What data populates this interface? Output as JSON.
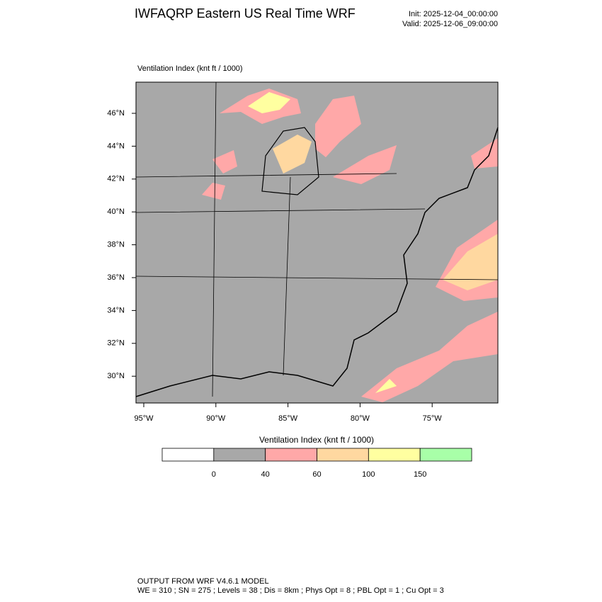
{
  "header": {
    "title": "IWFAQRP Eastern US Real Time WRF",
    "init": "Init: 2025-12-04_00:00:00",
    "valid": "Valid: 2025-12-06_09:00:00"
  },
  "map": {
    "title": "Ventilation Index   (knt ft / 1000)",
    "lat_labels": [
      "46°N",
      "44°N",
      "42°N",
      "40°N",
      "38°N",
      "36°N",
      "34°N",
      "32°N",
      "30°N"
    ],
    "lon_labels": [
      "95°W",
      "90°W",
      "85°W",
      "80°W",
      "75°W"
    ]
  },
  "colorbar": {
    "title": "Ventilation Index  (knt ft / 1000)",
    "labels": [
      0,
      40,
      60,
      100,
      150
    ],
    "colors": [
      "#ffffff",
      "#a8a8a8",
      "#ffa8a8",
      "#ffd8a0",
      "#ffff a0",
      "#a8ffa8"
    ]
  },
  "footer": {
    "line1": "OUTPUT FROM WRF V4.6.1 MODEL",
    "line2": "WE = 310 ; SN = 275 ; Levels = 38 ; Dis = 8km ; Phys Opt = 8 ; PBL Opt = 1 ; Cu Opt = 3"
  }
}
